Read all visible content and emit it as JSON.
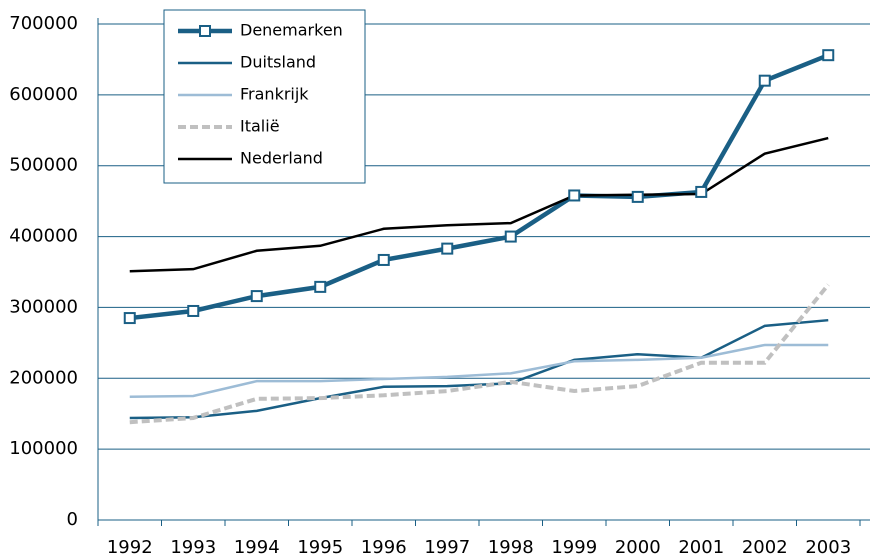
{
  "chart_data": {
    "type": "line",
    "categories": [
      "1992",
      "1993",
      "1994",
      "1995",
      "1996",
      "1997",
      "1998",
      "1999",
      "2000",
      "2001",
      "2002",
      "2003"
    ],
    "series": [
      {
        "name": "Denemarken",
        "color": "#1a5f85",
        "linestyle": "solid",
        "marker": "square",
        "values": [
          285000,
          295000,
          316000,
          329000,
          367000,
          383000,
          400000,
          458000,
          456000,
          463000,
          620000,
          656000
        ]
      },
      {
        "name": "Duitsland",
        "color": "#1a5f85",
        "linestyle": "solid",
        "values": [
          144000,
          145000,
          154000,
          172000,
          188000,
          189000,
          193000,
          226000,
          234000,
          229000,
          274000,
          282000
        ]
      },
      {
        "name": "Frankrijk",
        "color": "#9dbcd6",
        "linestyle": "solid",
        "values": [
          174000,
          175000,
          196000,
          196000,
          199000,
          202000,
          207000,
          224000,
          226000,
          229000,
          247000,
          247000
        ]
      },
      {
        "name": "Italië",
        "color": "#c0c0c0",
        "linestyle": "dashed",
        "values": [
          138000,
          144000,
          171000,
          172000,
          176000,
          182000,
          195000,
          182000,
          189000,
          222000,
          222000,
          332000
        ]
      },
      {
        "name": "Nederland",
        "color": "#000000",
        "linestyle": "solid",
        "values": [
          351000,
          354000,
          380000,
          387000,
          411000,
          416000,
          419000,
          458000,
          459000,
          460000,
          517000,
          539000
        ]
      }
    ],
    "ylim": [
      0,
      700000
    ],
    "yticks": [
      0,
      100000,
      200000,
      300000,
      400000,
      500000,
      600000,
      700000
    ],
    "grid": true,
    "legend": "upper left"
  }
}
